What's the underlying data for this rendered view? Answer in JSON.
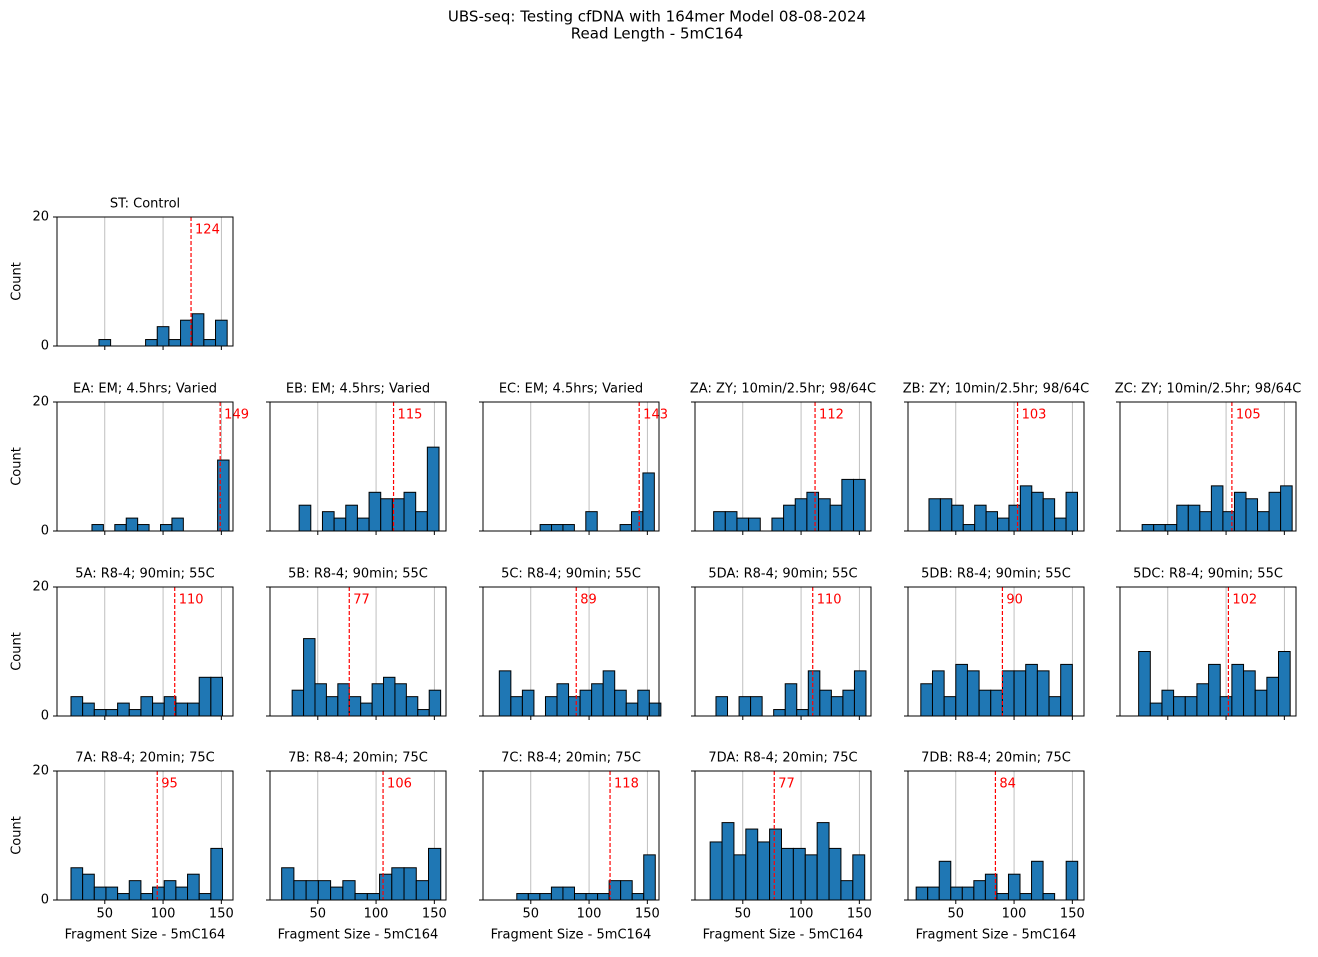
{
  "title": "UBS-seq: Testing cfDNA with 164mer Model 08-08-2024",
  "subtitle": "Read Length - 5mC164",
  "chart_data": [
    {
      "type": "histogram",
      "title": "ST: Control",
      "color": "#1f77b4",
      "bins": [
        45,
        55,
        65,
        75,
        85,
        95,
        105,
        115,
        125,
        135,
        145,
        155
      ],
      "values": [
        1,
        0,
        0,
        0,
        1,
        3,
        1,
        4,
        5,
        1,
        4
      ],
      "vline": 124,
      "xlim": [
        9,
        160
      ],
      "ylim": [
        0,
        20
      ],
      "xticks": [
        50,
        100,
        150
      ],
      "yticks": [
        0,
        20
      ],
      "grid": "x",
      "ylabel": "Count"
    },
    {
      "type": "histogram",
      "title": "EA: EM; 4.5hrs; Varied",
      "color": "#1f77b4",
      "bins": [
        39,
        48.8,
        58.6,
        68.4,
        78.2,
        88,
        97.8,
        107.6,
        117.4,
        127.2,
        137,
        146.8,
        156.6
      ],
      "values": [
        1,
        0,
        1,
        2,
        1,
        0,
        1,
        2,
        0,
        0,
        0,
        11
      ],
      "vline": 149,
      "xlim": [
        9,
        160
      ],
      "ylim": [
        0,
        20
      ],
      "xticks": [
        50,
        100,
        150
      ],
      "yticks": [
        0,
        20
      ],
      "grid": "x",
      "ylabel": "Count"
    },
    {
      "type": "histogram",
      "title": "EB: EM; 4.5hrs; Varied",
      "color": "#1f77b4",
      "bins": [
        34,
        44,
        54,
        64,
        74,
        84,
        94,
        104,
        114,
        124,
        134,
        144,
        154
      ],
      "values": [
        4,
        0,
        3,
        2,
        4,
        2,
        6,
        5,
        5,
        6,
        3,
        13
      ],
      "vline": 115,
      "xlim": [
        9,
        160
      ],
      "ylim": [
        0,
        20
      ],
      "xticks": [
        50,
        100,
        150
      ],
      "yticks": [
        0,
        20
      ],
      "grid": "x"
    },
    {
      "type": "histogram",
      "title": "EC: EM; 4.5hrs; Varied",
      "color": "#1f77b4",
      "bins": [
        58,
        67.8,
        77.6,
        87.4,
        97.2,
        107,
        116.8,
        126.6,
        136.4,
        146.2,
        156
      ],
      "values": [
        1,
        1,
        1,
        0,
        3,
        0,
        0,
        1,
        3,
        9
      ],
      "vline": 143,
      "xlim": [
        9,
        160
      ],
      "ylim": [
        0,
        20
      ],
      "xticks": [
        50,
        100,
        150
      ],
      "yticks": [
        0,
        20
      ],
      "grid": "x"
    },
    {
      "type": "histogram",
      "title": "ZA: ZY; 10min/2.5hr; 98/64C",
      "color": "#1f77b4",
      "bins": [
        25,
        35,
        45,
        55,
        65,
        75,
        85,
        95,
        105,
        115,
        125,
        135,
        145,
        155
      ],
      "values": [
        3,
        3,
        2,
        2,
        0,
        2,
        4,
        5,
        6,
        5,
        4,
        8,
        8
      ],
      "vline": 112,
      "xlim": [
        9,
        160
      ],
      "ylim": [
        0,
        20
      ],
      "xticks": [
        50,
        100,
        150
      ],
      "yticks": [
        0,
        20
      ],
      "grid": "x"
    },
    {
      "type": "histogram",
      "title": "ZB: ZY; 10min/2.5hr; 98/64C",
      "color": "#1f77b4",
      "bins": [
        27,
        36.8,
        46.6,
        56.4,
        66.2,
        76,
        85.8,
        95.6,
        105.4,
        115.2,
        125,
        134.8,
        144.6,
        154.4
      ],
      "values": [
        5,
        5,
        4,
        1,
        4,
        3,
        2,
        4,
        7,
        6,
        5,
        2,
        6
      ],
      "vline": 103,
      "xlim": [
        9,
        160
      ],
      "ylim": [
        0,
        20
      ],
      "xticks": [
        50,
        100,
        150
      ],
      "yticks": [
        0,
        20
      ],
      "grid": "x"
    },
    {
      "type": "histogram",
      "title": "ZC: ZY; 10min/2.5hr; 98/64C",
      "color": "#1f77b4",
      "bins": [
        28,
        37.9,
        47.8,
        57.7,
        67.6,
        77.5,
        87.4,
        97.3,
        107.2,
        117.1,
        127,
        136.9,
        146.8,
        156.7
      ],
      "values": [
        1,
        1,
        1,
        4,
        4,
        3,
        7,
        3,
        6,
        5,
        3,
        6,
        7
      ],
      "vline": 105,
      "xlim": [
        9,
        160
      ],
      "ylim": [
        0,
        20
      ],
      "xticks": [
        50,
        100,
        150
      ],
      "yticks": [
        0,
        20
      ],
      "grid": "x"
    },
    {
      "type": "histogram",
      "title": "5A: R8-4; 90min; 55C",
      "color": "#1f77b4",
      "bins": [
        21,
        31,
        41,
        51,
        61,
        71,
        81,
        91,
        101,
        111,
        121,
        131,
        141,
        151
      ],
      "values": [
        3,
        2,
        1,
        1,
        2,
        1,
        3,
        2,
        3,
        2,
        2,
        6,
        6
      ],
      "vline": 110,
      "xlim": [
        9,
        160
      ],
      "ylim": [
        0,
        20
      ],
      "xticks": [
        50,
        100,
        150
      ],
      "yticks": [
        0,
        20
      ],
      "grid": "x",
      "ylabel": "Count"
    },
    {
      "type": "histogram",
      "title": "5B: R8-4; 90min; 55C",
      "color": "#1f77b4",
      "bins": [
        28,
        37.8,
        47.6,
        57.4,
        67.2,
        77,
        86.8,
        96.6,
        106.4,
        116.2,
        126,
        135.8,
        145.6,
        155.4
      ],
      "values": [
        4,
        12,
        5,
        3,
        5,
        3,
        2,
        5,
        6,
        5,
        3,
        1,
        4
      ],
      "vline": 77,
      "xlim": [
        9,
        160
      ],
      "ylim": [
        0,
        20
      ],
      "xticks": [
        50,
        100,
        150
      ],
      "yticks": [
        0,
        20
      ],
      "grid": "x"
    },
    {
      "type": "histogram",
      "title": "5C: R8-4; 90min; 55C",
      "color": "#1f77b4",
      "bins": [
        23,
        32.9,
        42.8,
        52.7,
        62.6,
        72.5,
        82.4,
        92.3,
        102.2,
        112.1,
        122,
        131.9,
        141.8,
        151.7,
        161.6
      ],
      "values": [
        7,
        3,
        4,
        0,
        3,
        5,
        3,
        4,
        5,
        7,
        4,
        2,
        4,
        2
      ],
      "vline": 89,
      "xlim": [
        9,
        160
      ],
      "ylim": [
        0,
        20
      ],
      "xticks": [
        50,
        100,
        150
      ],
      "yticks": [
        0,
        20
      ],
      "grid": "x"
    },
    {
      "type": "histogram",
      "title": "5DA: R8-4; 90min; 55C",
      "color": "#1f77b4",
      "bins": [
        27,
        36.9,
        46.8,
        56.7,
        66.6,
        76.5,
        86.4,
        96.3,
        106.2,
        116.1,
        126,
        135.9,
        145.8,
        155.7
      ],
      "values": [
        3,
        0,
        3,
        3,
        0,
        1,
        5,
        1,
        7,
        4,
        3,
        4,
        7
      ],
      "vline": 110,
      "xlim": [
        9,
        160
      ],
      "ylim": [
        0,
        20
      ],
      "xticks": [
        50,
        100,
        150
      ],
      "yticks": [
        0,
        20
      ],
      "grid": "x"
    },
    {
      "type": "histogram",
      "title": "5DB: R8-4; 90min; 55C",
      "color": "#1f77b4",
      "bins": [
        20,
        30,
        40,
        50,
        60,
        70,
        80,
        90,
        100,
        110,
        120,
        130,
        140,
        150
      ],
      "values": [
        5,
        7,
        3,
        8,
        7,
        4,
        4,
        7,
        7,
        8,
        7,
        3,
        8
      ],
      "vline": 90,
      "xlim": [
        9,
        160
      ],
      "ylim": [
        0,
        20
      ],
      "xticks": [
        50,
        100,
        150
      ],
      "yticks": [
        0,
        20
      ],
      "grid": "x"
    },
    {
      "type": "histogram",
      "title": "5DC: R8-4; 90min; 55C",
      "color": "#1f77b4",
      "bins": [
        25,
        35,
        45,
        55,
        65,
        75,
        85,
        95,
        105,
        115,
        125,
        135,
        145,
        155
      ],
      "values": [
        10,
        2,
        4,
        3,
        3,
        5,
        8,
        3,
        8,
        7,
        4,
        6,
        10
      ],
      "vline": 102,
      "xlim": [
        9,
        160
      ],
      "ylim": [
        0,
        20
      ],
      "xticks": [
        50,
        100,
        150
      ],
      "yticks": [
        0,
        20
      ],
      "grid": "x"
    },
    {
      "type": "histogram",
      "title": "7A: R8-4; 20min; 75C",
      "color": "#1f77b4",
      "bins": [
        21,
        31,
        41,
        51,
        61,
        71,
        81,
        91,
        101,
        111,
        121,
        131,
        141,
        151
      ],
      "values": [
        5,
        4,
        2,
        2,
        1,
        3,
        1,
        2,
        3,
        2,
        4,
        1,
        8
      ],
      "vline": 95,
      "xlim": [
        9,
        160
      ],
      "ylim": [
        0,
        20
      ],
      "xticks": [
        50,
        100,
        150
      ],
      "yticks": [
        0,
        20
      ],
      "grid": "x",
      "ylabel": "Count",
      "xlabel": "Fragment Size - 5mC164"
    },
    {
      "type": "histogram",
      "title": "7B: R8-4; 20min; 75C",
      "color": "#1f77b4",
      "bins": [
        19,
        29.5,
        40,
        50.5,
        61,
        71.5,
        82,
        92.5,
        103,
        113.5,
        124,
        134.5,
        145,
        155.5
      ],
      "values": [
        5,
        3,
        3,
        3,
        2,
        3,
        1,
        1,
        4,
        5,
        5,
        3,
        8
      ],
      "vline": 106,
      "xlim": [
        9,
        160
      ],
      "ylim": [
        0,
        20
      ],
      "xticks": [
        50,
        100,
        150
      ],
      "yticks": [
        0,
        20
      ],
      "grid": "x",
      "xlabel": "Fragment Size - 5mC164"
    },
    {
      "type": "histogram",
      "title": "7C: R8-4; 20min; 75C",
      "color": "#1f77b4",
      "bins": [
        38,
        47.9,
        57.8,
        67.7,
        77.6,
        87.5,
        97.4,
        107.3,
        117.2,
        127.1,
        137,
        146.9,
        156.8
      ],
      "values": [
        1,
        1,
        1,
        2,
        2,
        1,
        1,
        1,
        3,
        3,
        1,
        7
      ],
      "vline": 118,
      "xlim": [
        9,
        160
      ],
      "ylim": [
        0,
        20
      ],
      "xticks": [
        50,
        100,
        150
      ],
      "yticks": [
        0,
        20
      ],
      "grid": "x",
      "xlabel": "Fragment Size - 5mC164"
    },
    {
      "type": "histogram",
      "title": "7DA: R8-4; 20min; 75C",
      "color": "#1f77b4",
      "bins": [
        22,
        32.2,
        42.4,
        52.6,
        62.8,
        73,
        83.2,
        93.4,
        103.6,
        113.8,
        124,
        134.2,
        144.4,
        154.6
      ],
      "values": [
        9,
        12,
        7,
        11,
        9,
        11,
        8,
        8,
        7,
        12,
        8,
        3,
        7
      ],
      "vline": 77,
      "xlim": [
        9,
        160
      ],
      "ylim": [
        0,
        20
      ],
      "xticks": [
        50,
        100,
        150
      ],
      "yticks": [
        0,
        20
      ],
      "grid": "x",
      "xlabel": "Fragment Size - 5mC164"
    },
    {
      "type": "histogram",
      "title": "7DB: R8-4; 20min; 75C",
      "color": "#1f77b4",
      "bins": [
        16,
        25.9,
        35.8,
        45.7,
        55.6,
        65.5,
        75.4,
        85.3,
        95.2,
        105.1,
        115,
        124.9,
        134.8,
        144.7,
        154.6
      ],
      "values": [
        2,
        2,
        6,
        2,
        2,
        3,
        4,
        1,
        4,
        1,
        6,
        1,
        0,
        6
      ],
      "vline": 84,
      "xlim": [
        9,
        160
      ],
      "ylim": [
        0,
        20
      ],
      "xticks": [
        50,
        100,
        150
      ],
      "yticks": [
        0,
        20
      ],
      "grid": "x",
      "xlabel": "Fragment Size - 5mC164"
    }
  ]
}
